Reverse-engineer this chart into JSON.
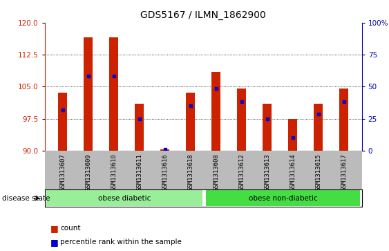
{
  "title": "GDS5167 / ILMN_1862900",
  "samples": [
    "GSM1313607",
    "GSM1313609",
    "GSM1313610",
    "GSM1313611",
    "GSM1313616",
    "GSM1313618",
    "GSM1313608",
    "GSM1313612",
    "GSM1313613",
    "GSM1313614",
    "GSM1313615",
    "GSM1313617"
  ],
  "count_top": [
    103.5,
    116.5,
    116.5,
    101.0,
    90.3,
    103.5,
    108.5,
    104.5,
    101.0,
    97.5,
    101.0,
    104.5
  ],
  "count_bottom": [
    90,
    90,
    90,
    90,
    90,
    90,
    90,
    90,
    90,
    90,
    90,
    90
  ],
  "percentile": [
    99.5,
    107.5,
    107.5,
    97.5,
    90.3,
    100.5,
    104.5,
    101.5,
    97.5,
    93.0,
    98.5,
    101.5
  ],
  "ylim_left": [
    90,
    120
  ],
  "ylim_right": [
    0,
    100
  ],
  "yticks_left": [
    90,
    97.5,
    105,
    112.5,
    120
  ],
  "yticks_right": [
    0,
    25,
    50,
    75,
    100
  ],
  "bar_color": "#CC2200",
  "percentile_color": "#0000CC",
  "bg_color": "#FFFFFF",
  "tick_area_color": "#BBBBBB",
  "left_tick_color": "#CC2200",
  "right_tick_color": "#0000BB",
  "grid_color": "#000000",
  "obese_diabetic_color": "#99EE99",
  "obese_nondiabetic_color": "#44DD44",
  "disease_state_label": "disease state",
  "legend_count": "count",
  "legend_percentile": "percentile rank within the sample",
  "bar_width": 0.35
}
